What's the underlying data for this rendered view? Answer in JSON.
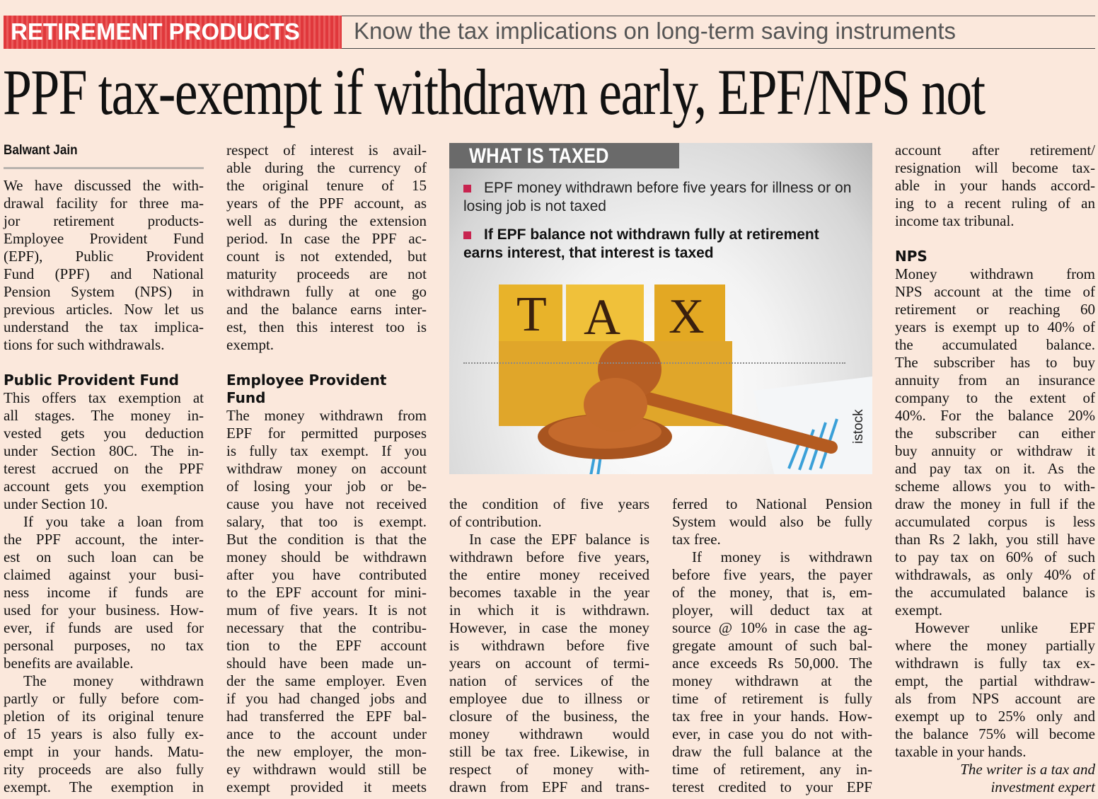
{
  "kicker": {
    "label": "RETIREMENT PRODUCTS",
    "subtitle": "Know the tax implications on long-term saving instruments",
    "color": "#e0383c"
  },
  "headline": "PPF tax-exempt if withdrawn early, EPF/NPS not",
  "byline": "Balwant Jain",
  "columns": [
    {
      "blocks": [
        {
          "type": "para",
          "lines": [
            "We have discussed the with-",
            "drawal facility for three ma-",
            "jor retirement products-",
            "Employee Provident Fund",
            "(EPF), Public Provident",
            "Fund (PPF) and National",
            "Pension System (NPS) in",
            "previous articles. Now let us",
            "understand the tax implica-",
            "tions for such withdrawals."
          ]
        },
        {
          "type": "heading",
          "lines": [
            "Public Provident Fund"
          ]
        },
        {
          "type": "para",
          "lines": [
            "This offers tax exemption at",
            "all stages. The money in-",
            "vested gets you deduction",
            "under Section 80C. The in-",
            "terest accrued on the PPF",
            "account gets you exemption",
            "under Section 10."
          ]
        },
        {
          "type": "para",
          "lines": [
            "If you take a loan from",
            "the PPF account, the inter-",
            "est on such loan can be",
            "claimed against your busi-",
            "ness income if funds are",
            "used for your business. How-",
            "ever, if funds are used for",
            "personal purposes, no tax",
            "benefits are available."
          ]
        },
        {
          "type": "para",
          "lines": [
            "The money withdrawn",
            "partly or fully before com-",
            "pletion of its original tenure",
            "of 15 years is also fully ex-",
            "empt in your hands. Matu-",
            "rity proceeds are also fully",
            "exempt. The exemption in"
          ]
        }
      ]
    },
    {
      "blocks": [
        {
          "type": "para",
          "lines": [
            "respect of interest is avail-",
            "able during the currency of",
            "the original tenure of 15",
            "years of the PPF account, as",
            "well as during the extension",
            "period. In case the PPF ac-",
            "count is not extended, but",
            "maturity proceeds are not",
            "withdrawn fully at one go",
            "and the balance earns inter-",
            "est, then this interest too is",
            "exempt."
          ]
        },
        {
          "type": "heading",
          "lines": [
            "Employee Provident",
            "Fund"
          ]
        },
        {
          "type": "para",
          "lines": [
            "The money withdrawn from",
            "EPF for permitted purposes",
            "is fully tax exempt. If you",
            "withdraw money on account",
            "of losing your job or be-",
            "cause you have not received",
            "salary, that too is exempt.",
            "But the condition is that the",
            "money should be withdrawn",
            "after you have contributed",
            "to the EPF account for mini-",
            "mum of five years. It is not",
            "necessary that the contribu-",
            "tion to the EPF account",
            "should have been made un-",
            "der the same employer. Even",
            "if you had changed jobs and",
            "had transferred the EPF bal-",
            "ance to the account under",
            "the new employer, the mon-",
            "ey withdrawn would still be",
            "exempt provided it meets"
          ]
        }
      ]
    },
    {
      "blocks": [
        {
          "type": "para",
          "lines": [
            "the condition of five years",
            "of contribution."
          ]
        },
        {
          "type": "para",
          "lines": [
            "In case the EPF balance is",
            "withdrawn before five years,",
            "the entire money received",
            "becomes taxable in the year",
            "in which it is withdrawn.",
            "However, in case the money",
            "is withdrawn before five",
            "years on account of termi-",
            "nation of services of the",
            "employee due to illness or",
            "closure of the business, the",
            "money withdrawn would",
            "still be tax free. Likewise, in",
            "respect of money with-",
            "drawn from EPF and trans-"
          ]
        }
      ]
    },
    {
      "blocks": [
        {
          "type": "para",
          "lines": [
            "ferred to National Pension",
            "System would also be fully",
            "tax free."
          ]
        },
        {
          "type": "para",
          "lines": [
            "If money is withdrawn",
            "before five years, the payer",
            "of the money, that is, em-",
            "ployer, will deduct tax at",
            "source @ 10% in case the ag-",
            "gregate amount of such bal-",
            "ance exceeds Rs 50,000. The",
            "money withdrawn at the",
            "time of retirement is fully",
            "tax free in your hands. How-",
            "ever, in case you do not with-",
            "draw the full balance at the",
            "time of retirement, any in-",
            "terest credited to your EPF"
          ]
        }
      ]
    },
    {
      "blocks": [
        {
          "type": "para",
          "lines": [
            "account after retirement/",
            "resignation will become tax-",
            "able in your hands accord-",
            "ing to a recent ruling of an",
            "income tax tribunal."
          ]
        },
        {
          "type": "heading",
          "lines": [
            "NPS"
          ]
        },
        {
          "type": "para",
          "lines": [
            "Money withdrawn from",
            "NPS account at the time of",
            "retirement or reaching 60",
            "years is exempt up to 40% of",
            "the accumulated balance.",
            "The subscriber has to buy",
            "annuity from an insurance",
            "company to the extent of",
            "40%. For the balance 20%",
            "the subscriber can either",
            "buy annuity or withdraw it",
            "and pay tax on it. As the",
            "scheme allows you to with-",
            "draw the money in full if the",
            "accumulated corpus is less",
            "than Rs 2 lakh, you still have",
            "to pay tax on 60% of such",
            "withdrawals, as only 40% of",
            "the accumulated balance is",
            "exempt."
          ]
        },
        {
          "type": "para",
          "lines": [
            "However unlike EPF",
            "where the money partially",
            "withdrawn is fully tax ex-",
            "empt, the partial withdraw-",
            "als from NPS account are",
            "exempt up to 25% only and",
            "the balance 75% will become",
            "taxable in your hands."
          ]
        },
        {
          "type": "signature",
          "lines": [
            "The writer is a tax and",
            "investment expert"
          ]
        }
      ]
    }
  ],
  "infobox": {
    "title": "WHAT IS TAXED",
    "bullets": [
      "EPF money withdrawn before five years for illness or on losing job is not taxed",
      "If EPF balance not withdrawn fully at retirement earns interest, that interest is taxed"
    ],
    "image_letters": [
      "T",
      "A",
      "X"
    ],
    "credit": "istock",
    "bullet_color": "#c8244f"
  }
}
